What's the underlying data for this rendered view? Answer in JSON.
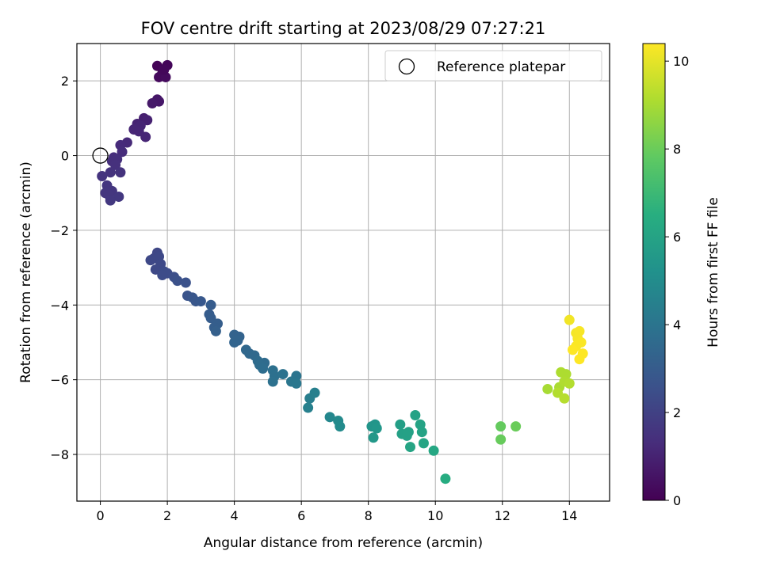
{
  "chart_data": {
    "type": "scatter",
    "title": "FOV centre drift starting at 2023/08/29 07:27:21",
    "xlabel": "Angular distance from reference (arcmin)",
    "ylabel": "Rotation from reference (arcmin)",
    "xlim": [
      -0.7,
      15.2
    ],
    "ylim": [
      -9.25,
      3.0
    ],
    "xticks": [
      0,
      2,
      4,
      6,
      8,
      10,
      12,
      14
    ],
    "yticks": [
      2,
      0,
      -2,
      -4,
      -6,
      -8
    ],
    "grid": true,
    "colormap": "viridis",
    "colorbar": {
      "label": "Hours from first FF file",
      "range": [
        0,
        10.4
      ],
      "ticks": [
        0,
        2,
        4,
        6,
        8,
        10
      ]
    },
    "legend": {
      "placement": "top-right",
      "entries": [
        {
          "label": "Reference platepar",
          "marker": "open-circle"
        }
      ]
    },
    "reference_point": {
      "x": 0,
      "y": 0
    },
    "points": [
      {
        "x": 1.7,
        "y": 2.4,
        "c": 0.1
      },
      {
        "x": 2.0,
        "y": 2.42,
        "c": 0.15
      },
      {
        "x": 1.85,
        "y": 2.2,
        "c": 0.2
      },
      {
        "x": 1.75,
        "y": 2.1,
        "c": 0.25
      },
      {
        "x": 1.95,
        "y": 2.1,
        "c": 0.3
      },
      {
        "x": 1.9,
        "y": 2.3,
        "c": 0.2
      },
      {
        "x": 1.7,
        "y": 1.5,
        "c": 0.6
      },
      {
        "x": 1.75,
        "y": 1.45,
        "c": 0.65
      },
      {
        "x": 1.55,
        "y": 1.4,
        "c": 0.7
      },
      {
        "x": 1.3,
        "y": 1.0,
        "c": 0.9
      },
      {
        "x": 1.4,
        "y": 0.95,
        "c": 0.95
      },
      {
        "x": 1.1,
        "y": 0.85,
        "c": 1.0
      },
      {
        "x": 1.2,
        "y": 0.8,
        "c": 1.05
      },
      {
        "x": 1.0,
        "y": 0.7,
        "c": 1.1
      },
      {
        "x": 1.35,
        "y": 0.5,
        "c": 1.1
      },
      {
        "x": 1.15,
        "y": 0.65,
        "c": 1.1
      },
      {
        "x": 0.8,
        "y": 0.35,
        "c": 1.2
      },
      {
        "x": 0.6,
        "y": 0.28,
        "c": 1.25
      },
      {
        "x": 0.65,
        "y": 0.1,
        "c": 1.3
      },
      {
        "x": 0.4,
        "y": -0.05,
        "c": 1.35
      },
      {
        "x": 0.5,
        "y": -0.1,
        "c": 1.4
      },
      {
        "x": 0.35,
        "y": -0.15,
        "c": 1.4
      },
      {
        "x": 0.45,
        "y": -0.25,
        "c": 1.45
      },
      {
        "x": 0.6,
        "y": -0.45,
        "c": 1.5
      },
      {
        "x": 0.3,
        "y": -0.45,
        "c": 1.5
      },
      {
        "x": 0.05,
        "y": -0.55,
        "c": 1.55
      },
      {
        "x": 0.2,
        "y": -0.8,
        "c": 1.6
      },
      {
        "x": 0.35,
        "y": -0.95,
        "c": 1.6
      },
      {
        "x": 0.15,
        "y": -1.0,
        "c": 1.65
      },
      {
        "x": 0.25,
        "y": -1.05,
        "c": 1.65
      },
      {
        "x": 0.55,
        "y": -1.1,
        "c": 1.7
      },
      {
        "x": 0.3,
        "y": -1.2,
        "c": 1.7
      },
      {
        "x": 1.7,
        "y": -2.6,
        "c": 2.2
      },
      {
        "x": 1.6,
        "y": -2.75,
        "c": 2.2
      },
      {
        "x": 1.75,
        "y": -2.7,
        "c": 2.25
      },
      {
        "x": 1.5,
        "y": -2.8,
        "c": 2.25
      },
      {
        "x": 1.8,
        "y": -2.9,
        "c": 2.3
      },
      {
        "x": 1.65,
        "y": -3.05,
        "c": 2.3
      },
      {
        "x": 1.9,
        "y": -3.1,
        "c": 2.35
      },
      {
        "x": 2.0,
        "y": -3.15,
        "c": 2.4
      },
      {
        "x": 1.85,
        "y": -3.2,
        "c": 2.4
      },
      {
        "x": 2.2,
        "y": -3.25,
        "c": 2.5
      },
      {
        "x": 2.3,
        "y": -3.35,
        "c": 2.55
      },
      {
        "x": 2.55,
        "y": -3.4,
        "c": 2.6
      },
      {
        "x": 2.6,
        "y": -3.75,
        "c": 2.7
      },
      {
        "x": 2.75,
        "y": -3.8,
        "c": 2.75
      },
      {
        "x": 2.85,
        "y": -3.9,
        "c": 2.8
      },
      {
        "x": 3.0,
        "y": -3.9,
        "c": 2.85
      },
      {
        "x": 3.3,
        "y": -4.0,
        "c": 3.0
      },
      {
        "x": 3.25,
        "y": -4.25,
        "c": 3.0
      },
      {
        "x": 3.3,
        "y": -4.35,
        "c": 3.05
      },
      {
        "x": 3.5,
        "y": -4.5,
        "c": 3.1
      },
      {
        "x": 3.4,
        "y": -4.6,
        "c": 3.1
      },
      {
        "x": 3.45,
        "y": -4.7,
        "c": 3.15
      },
      {
        "x": 4.0,
        "y": -4.8,
        "c": 3.3
      },
      {
        "x": 4.15,
        "y": -4.85,
        "c": 3.3
      },
      {
        "x": 4.1,
        "y": -4.95,
        "c": 3.35
      },
      {
        "x": 4.0,
        "y": -5.0,
        "c": 3.35
      },
      {
        "x": 4.35,
        "y": -5.2,
        "c": 3.5
      },
      {
        "x": 4.45,
        "y": -5.3,
        "c": 3.5
      },
      {
        "x": 4.6,
        "y": -5.35,
        "c": 3.55
      },
      {
        "x": 4.7,
        "y": -5.5,
        "c": 3.6
      },
      {
        "x": 4.9,
        "y": -5.55,
        "c": 3.6
      },
      {
        "x": 4.75,
        "y": -5.6,
        "c": 3.65
      },
      {
        "x": 4.85,
        "y": -5.7,
        "c": 3.7
      },
      {
        "x": 5.15,
        "y": -5.75,
        "c": 3.8
      },
      {
        "x": 5.2,
        "y": -5.9,
        "c": 3.8
      },
      {
        "x": 5.15,
        "y": -6.05,
        "c": 3.85
      },
      {
        "x": 5.45,
        "y": -5.85,
        "c": 3.9
      },
      {
        "x": 5.85,
        "y": -5.9,
        "c": 4.0
      },
      {
        "x": 5.7,
        "y": -6.05,
        "c": 4.05
      },
      {
        "x": 5.85,
        "y": -6.1,
        "c": 4.1
      },
      {
        "x": 6.25,
        "y": -6.5,
        "c": 4.4
      },
      {
        "x": 6.4,
        "y": -6.35,
        "c": 4.45
      },
      {
        "x": 6.2,
        "y": -6.75,
        "c": 4.5
      },
      {
        "x": 6.85,
        "y": -7.0,
        "c": 4.8
      },
      {
        "x": 7.1,
        "y": -7.1,
        "c": 4.9
      },
      {
        "x": 7.15,
        "y": -7.25,
        "c": 4.95
      },
      {
        "x": 8.1,
        "y": -7.25,
        "c": 5.4
      },
      {
        "x": 8.2,
        "y": -7.2,
        "c": 5.4
      },
      {
        "x": 8.25,
        "y": -7.3,
        "c": 5.45
      },
      {
        "x": 8.15,
        "y": -7.55,
        "c": 5.5
      },
      {
        "x": 8.95,
        "y": -7.2,
        "c": 5.8
      },
      {
        "x": 9.0,
        "y": -7.45,
        "c": 5.85
      },
      {
        "x": 9.15,
        "y": -7.5,
        "c": 5.9
      },
      {
        "x": 9.2,
        "y": -7.4,
        "c": 5.9
      },
      {
        "x": 9.4,
        "y": -6.95,
        "c": 5.95
      },
      {
        "x": 9.55,
        "y": -7.2,
        "c": 6.0
      },
      {
        "x": 9.6,
        "y": -7.4,
        "c": 6.0
      },
      {
        "x": 9.25,
        "y": -7.8,
        "c": 6.05
      },
      {
        "x": 9.65,
        "y": -7.7,
        "c": 6.1
      },
      {
        "x": 9.95,
        "y": -7.9,
        "c": 6.2
      },
      {
        "x": 10.3,
        "y": -8.65,
        "c": 6.4
      },
      {
        "x": 11.95,
        "y": -7.25,
        "c": 7.9
      },
      {
        "x": 11.95,
        "y": -7.6,
        "c": 7.95
      },
      {
        "x": 12.4,
        "y": -7.25,
        "c": 8.0
      },
      {
        "x": 13.35,
        "y": -6.25,
        "c": 9.0
      },
      {
        "x": 13.7,
        "y": -6.2,
        "c": 9.05
      },
      {
        "x": 13.75,
        "y": -5.8,
        "c": 9.1
      },
      {
        "x": 13.9,
        "y": -5.85,
        "c": 9.1
      },
      {
        "x": 13.85,
        "y": -6.05,
        "c": 9.15
      },
      {
        "x": 14.0,
        "y": -6.1,
        "c": 9.2
      },
      {
        "x": 13.65,
        "y": -6.35,
        "c": 9.2
      },
      {
        "x": 13.85,
        "y": -6.5,
        "c": 9.25
      },
      {
        "x": 14.0,
        "y": -4.4,
        "c": 10.2
      },
      {
        "x": 14.2,
        "y": -4.75,
        "c": 10.25
      },
      {
        "x": 14.3,
        "y": -4.7,
        "c": 10.3
      },
      {
        "x": 14.25,
        "y": -4.9,
        "c": 10.3
      },
      {
        "x": 14.35,
        "y": -5.0,
        "c": 10.35
      },
      {
        "x": 14.2,
        "y": -5.1,
        "c": 10.35
      },
      {
        "x": 14.1,
        "y": -5.2,
        "c": 10.4
      },
      {
        "x": 14.4,
        "y": -5.3,
        "c": 10.4
      },
      {
        "x": 14.3,
        "y": -5.45,
        "c": 10.4
      }
    ]
  }
}
